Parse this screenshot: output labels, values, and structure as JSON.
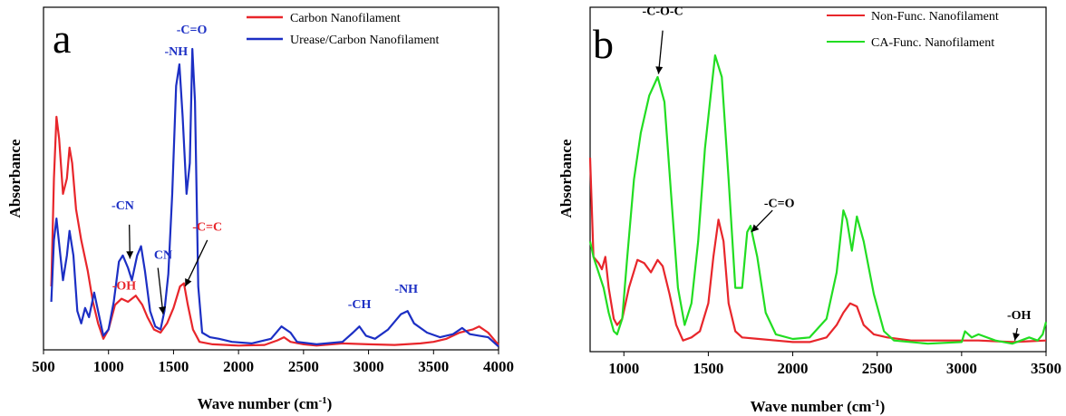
{
  "colors": {
    "red": "#e8262b",
    "blue": "#1c2fc4",
    "green": "#22dd22",
    "black": "#000000"
  },
  "chart_data": [
    {
      "type": "line",
      "panel_label": "a",
      "xlabel": "Wave number (cm⁻¹)",
      "ylabel": "Absorbance",
      "xlim": [
        500,
        4000
      ],
      "ylim": [
        0,
        1
      ],
      "xticks": [
        500,
        1000,
        1500,
        2000,
        2500,
        3000,
        3500,
        4000
      ],
      "legend_position": "top-right",
      "series": [
        {
          "name": "Carbon Nanofilament",
          "color": "#e8262b",
          "points": [
            [
              560,
              0.2
            ],
            [
              580,
              0.55
            ],
            [
              600,
              0.75
            ],
            [
              620,
              0.68
            ],
            [
              650,
              0.5
            ],
            [
              680,
              0.55
            ],
            [
              700,
              0.65
            ],
            [
              720,
              0.6
            ],
            [
              750,
              0.45
            ],
            [
              790,
              0.35
            ],
            [
              840,
              0.25
            ],
            [
              880,
              0.15
            ],
            [
              920,
              0.08
            ],
            [
              960,
              0.03
            ],
            [
              1000,
              0.06
            ],
            [
              1050,
              0.14
            ],
            [
              1100,
              0.16
            ],
            [
              1150,
              0.15
            ],
            [
              1210,
              0.17
            ],
            [
              1260,
              0.14
            ],
            [
              1300,
              0.1
            ],
            [
              1350,
              0.06
            ],
            [
              1400,
              0.05
            ],
            [
              1450,
              0.08
            ],
            [
              1500,
              0.13
            ],
            [
              1550,
              0.2
            ],
            [
              1580,
              0.21
            ],
            [
              1610,
              0.14
            ],
            [
              1650,
              0.06
            ],
            [
              1700,
              0.02
            ],
            [
              1800,
              0.012
            ],
            [
              2000,
              0.008
            ],
            [
              2200,
              0.01
            ],
            [
              2300,
              0.025
            ],
            [
              2350,
              0.035
            ],
            [
              2400,
              0.02
            ],
            [
              2500,
              0.012
            ],
            [
              2600,
              0.008
            ],
            [
              2800,
              0.015
            ],
            [
              3000,
              0.012
            ],
            [
              3200,
              0.01
            ],
            [
              3400,
              0.015
            ],
            [
              3500,
              0.02
            ],
            [
              3600,
              0.03
            ],
            [
              3700,
              0.05
            ],
            [
              3800,
              0.06
            ],
            [
              3850,
              0.07
            ],
            [
              3920,
              0.05
            ],
            [
              4000,
              0.01
            ]
          ]
        },
        {
          "name": "Urease/Carbon Nanofilament",
          "color": "#1c2fc4",
          "points": [
            [
              560,
              0.15
            ],
            [
              580,
              0.35
            ],
            [
              600,
              0.42
            ],
            [
              630,
              0.3
            ],
            [
              650,
              0.22
            ],
            [
              680,
              0.3
            ],
            [
              700,
              0.38
            ],
            [
              730,
              0.3
            ],
            [
              760,
              0.12
            ],
            [
              790,
              0.08
            ],
            [
              820,
              0.13
            ],
            [
              850,
              0.1
            ],
            [
              890,
              0.18
            ],
            [
              920,
              0.12
            ],
            [
              960,
              0.04
            ],
            [
              1000,
              0.06
            ],
            [
              1040,
              0.15
            ],
            [
              1080,
              0.28
            ],
            [
              1110,
              0.3
            ],
            [
              1150,
              0.26
            ],
            [
              1180,
              0.22
            ],
            [
              1220,
              0.3
            ],
            [
              1250,
              0.33
            ],
            [
              1280,
              0.25
            ],
            [
              1320,
              0.12
            ],
            [
              1360,
              0.07
            ],
            [
              1400,
              0.06
            ],
            [
              1430,
              0.12
            ],
            [
              1460,
              0.24
            ],
            [
              1490,
              0.5
            ],
            [
              1520,
              0.85
            ],
            [
              1545,
              0.92
            ],
            [
              1570,
              0.75
            ],
            [
              1600,
              0.5
            ],
            [
              1625,
              0.6
            ],
            [
              1645,
              0.97
            ],
            [
              1665,
              0.8
            ],
            [
              1690,
              0.2
            ],
            [
              1720,
              0.05
            ],
            [
              1780,
              0.035
            ],
            [
              1850,
              0.03
            ],
            [
              1950,
              0.02
            ],
            [
              2100,
              0.015
            ],
            [
              2250,
              0.03
            ],
            [
              2330,
              0.07
            ],
            [
              2400,
              0.05
            ],
            [
              2450,
              0.02
            ],
            [
              2600,
              0.012
            ],
            [
              2800,
              0.02
            ],
            [
              2880,
              0.05
            ],
            [
              2930,
              0.07
            ],
            [
              2980,
              0.04
            ],
            [
              3050,
              0.03
            ],
            [
              3150,
              0.06
            ],
            [
              3250,
              0.11
            ],
            [
              3300,
              0.12
            ],
            [
              3350,
              0.08
            ],
            [
              3450,
              0.05
            ],
            [
              3550,
              0.035
            ],
            [
              3650,
              0.045
            ],
            [
              3720,
              0.065
            ],
            [
              3780,
              0.045
            ],
            [
              3850,
              0.04
            ],
            [
              3920,
              0.035
            ],
            [
              4000,
              0.005
            ]
          ]
        }
      ],
      "annotations": [
        {
          "text": "-C=O",
          "x": 1640,
          "y": 1.02,
          "color": "#1c2fc4"
        },
        {
          "text": "-NH",
          "x": 1520,
          "y": 0.95,
          "color": "#1c2fc4"
        },
        {
          "text": "-CN",
          "x": 1110,
          "y": 0.45,
          "color": "#1c2fc4"
        },
        {
          "text": "CN",
          "x": 1420,
          "y": 0.29,
          "color": "#1c2fc4"
        },
        {
          "text": "-OH",
          "x": 1120,
          "y": 0.19,
          "color": "#e8262b"
        },
        {
          "text": "-C=C",
          "x": 1760,
          "y": 0.38,
          "color": "#e8262b"
        },
        {
          "text": "-CH",
          "x": 2930,
          "y": 0.13,
          "color": "#1c2fc4"
        },
        {
          "text": "-NH",
          "x": 3290,
          "y": 0.18,
          "color": "#1c2fc4"
        }
      ],
      "arrows": [
        {
          "from": [
            1160,
            0.4
          ],
          "to": [
            1165,
            0.29
          ]
        },
        {
          "from": [
            1380,
            0.26
          ],
          "to": [
            1420,
            0.11
          ]
        },
        {
          "from": [
            1760,
            0.35
          ],
          "to": [
            1590,
            0.2
          ]
        }
      ]
    },
    {
      "type": "line",
      "panel_label": "b",
      "xlabel": "Wave number (cm⁻¹)",
      "ylabel": "Absorbance",
      "xlim": [
        800,
        3500
      ],
      "ylim": [
        0,
        1
      ],
      "xticks": [
        1000,
        1500,
        2000,
        2500,
        3000,
        3500
      ],
      "legend_position": "top-right",
      "series": [
        {
          "name": "Non-Func. Nanofilament",
          "color": "#e8262b",
          "points": [
            [
              800,
              0.62
            ],
            [
              820,
              0.3
            ],
            [
              850,
              0.28
            ],
            [
              870,
              0.26
            ],
            [
              890,
              0.3
            ],
            [
              910,
              0.2
            ],
            [
              940,
              0.1
            ],
            [
              960,
              0.08
            ],
            [
              990,
              0.1
            ],
            [
              1030,
              0.2
            ],
            [
              1080,
              0.29
            ],
            [
              1120,
              0.28
            ],
            [
              1160,
              0.25
            ],
            [
              1200,
              0.29
            ],
            [
              1230,
              0.27
            ],
            [
              1270,
              0.18
            ],
            [
              1310,
              0.08
            ],
            [
              1350,
              0.03
            ],
            [
              1400,
              0.04
            ],
            [
              1450,
              0.06
            ],
            [
              1500,
              0.15
            ],
            [
              1530,
              0.3
            ],
            [
              1560,
              0.42
            ],
            [
              1590,
              0.35
            ],
            [
              1620,
              0.15
            ],
            [
              1660,
              0.06
            ],
            [
              1700,
              0.04
            ],
            [
              1800,
              0.035
            ],
            [
              1900,
              0.03
            ],
            [
              2000,
              0.025
            ],
            [
              2100,
              0.025
            ],
            [
              2200,
              0.04
            ],
            [
              2260,
              0.08
            ],
            [
              2300,
              0.12
            ],
            [
              2340,
              0.15
            ],
            [
              2380,
              0.14
            ],
            [
              2420,
              0.08
            ],
            [
              2480,
              0.05
            ],
            [
              2560,
              0.04
            ],
            [
              2700,
              0.03
            ],
            [
              2900,
              0.03
            ],
            [
              3100,
              0.03
            ],
            [
              3300,
              0.025
            ],
            [
              3500,
              0.03
            ]
          ]
        },
        {
          "name": "CA-Func. Nanofilament",
          "color": "#22dd22",
          "points": [
            [
              800,
              0.35
            ],
            [
              820,
              0.3
            ],
            [
              850,
              0.25
            ],
            [
              880,
              0.2
            ],
            [
              910,
              0.12
            ],
            [
              940,
              0.06
            ],
            [
              960,
              0.05
            ],
            [
              990,
              0.1
            ],
            [
              1020,
              0.3
            ],
            [
              1060,
              0.55
            ],
            [
              1100,
              0.7
            ],
            [
              1150,
              0.82
            ],
            [
              1200,
              0.88
            ],
            [
              1240,
              0.8
            ],
            [
              1280,
              0.5
            ],
            [
              1320,
              0.2
            ],
            [
              1360,
              0.08
            ],
            [
              1400,
              0.15
            ],
            [
              1440,
              0.35
            ],
            [
              1480,
              0.65
            ],
            [
              1520,
              0.85
            ],
            [
              1540,
              0.95
            ],
            [
              1580,
              0.88
            ],
            [
              1620,
              0.55
            ],
            [
              1660,
              0.2
            ],
            [
              1700,
              0.2
            ],
            [
              1730,
              0.38
            ],
            [
              1750,
              0.4
            ],
            [
              1790,
              0.3
            ],
            [
              1840,
              0.12
            ],
            [
              1900,
              0.05
            ],
            [
              2000,
              0.035
            ],
            [
              2100,
              0.04
            ],
            [
              2200,
              0.1
            ],
            [
              2260,
              0.25
            ],
            [
              2300,
              0.45
            ],
            [
              2320,
              0.42
            ],
            [
              2350,
              0.32
            ],
            [
              2380,
              0.43
            ],
            [
              2420,
              0.35
            ],
            [
              2480,
              0.18
            ],
            [
              2540,
              0.06
            ],
            [
              2600,
              0.03
            ],
            [
              2800,
              0.02
            ],
            [
              3000,
              0.025
            ],
            [
              3020,
              0.06
            ],
            [
              3060,
              0.04
            ],
            [
              3100,
              0.05
            ],
            [
              3200,
              0.03
            ],
            [
              3300,
              0.02
            ],
            [
              3400,
              0.04
            ],
            [
              3450,
              0.03
            ],
            [
              3480,
              0.05
            ],
            [
              3500,
              0.09
            ]
          ]
        }
      ],
      "annotations": [
        {
          "text": "-C-O-C",
          "x": 1230,
          "y": 1.08,
          "color": "#000000"
        },
        {
          "text": "-C=O",
          "x": 1920,
          "y": 0.46,
          "color": "#000000"
        },
        {
          "text": "-OH",
          "x": 3340,
          "y": 0.1,
          "color": "#000000"
        }
      ],
      "arrows": [
        {
          "from": [
            1230,
            1.03
          ],
          "to": [
            1205,
            0.89
          ]
        },
        {
          "from": [
            1880,
            0.45
          ],
          "to": [
            1755,
            0.38
          ]
        },
        {
          "from": [
            3330,
            0.07
          ],
          "to": [
            3315,
            0.03
          ]
        }
      ]
    }
  ]
}
